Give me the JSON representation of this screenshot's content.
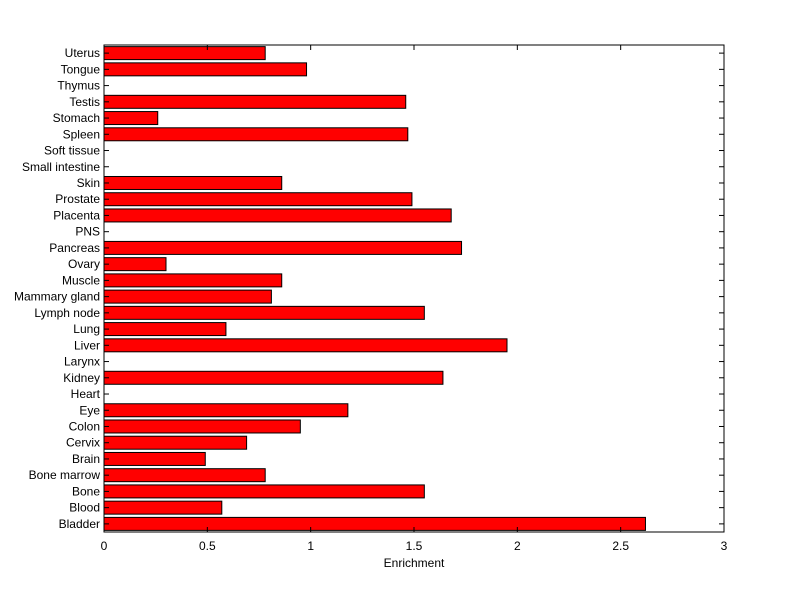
{
  "chart_data": {
    "type": "bar",
    "orientation": "horizontal",
    "categories": [
      "Bladder",
      "Blood",
      "Bone",
      "Bone marrow",
      "Brain",
      "Cervix",
      "Colon",
      "Eye",
      "Heart",
      "Kidney",
      "Larynx",
      "Liver",
      "Lung",
      "Lymph node",
      "Mammary gland",
      "Muscle",
      "Ovary",
      "Pancreas",
      "PNS",
      "Placenta",
      "Prostate",
      "Skin",
      "Small intestine",
      "Soft tissue",
      "Spleen",
      "Stomach",
      "Testis",
      "Thymus",
      "Tongue",
      "Uterus"
    ],
    "values": [
      2.62,
      0.57,
      1.55,
      0.78,
      0.49,
      0.69,
      0.95,
      1.18,
      0,
      1.64,
      0,
      1.95,
      0.59,
      1.55,
      0.81,
      0.86,
      0.3,
      1.73,
      0,
      1.68,
      1.49,
      0.86,
      0,
      0,
      1.47,
      0.26,
      1.46,
      0,
      0.98,
      0.78
    ],
    "xlabel": "Enrichment",
    "ylabel": "",
    "title": "",
    "xlim": [
      0,
      3
    ],
    "xticks": [
      0,
      0.5,
      1,
      1.5,
      2,
      2.5,
      3
    ],
    "xtick_labels": [
      "0",
      "0.5",
      "1",
      "1.5",
      "2",
      "2.5",
      "3"
    ],
    "grid": false,
    "colors": {
      "bar_fill": "#ff0000",
      "bar_edge": "#000000",
      "axis": "#000000",
      "background": "#ffffff"
    }
  }
}
